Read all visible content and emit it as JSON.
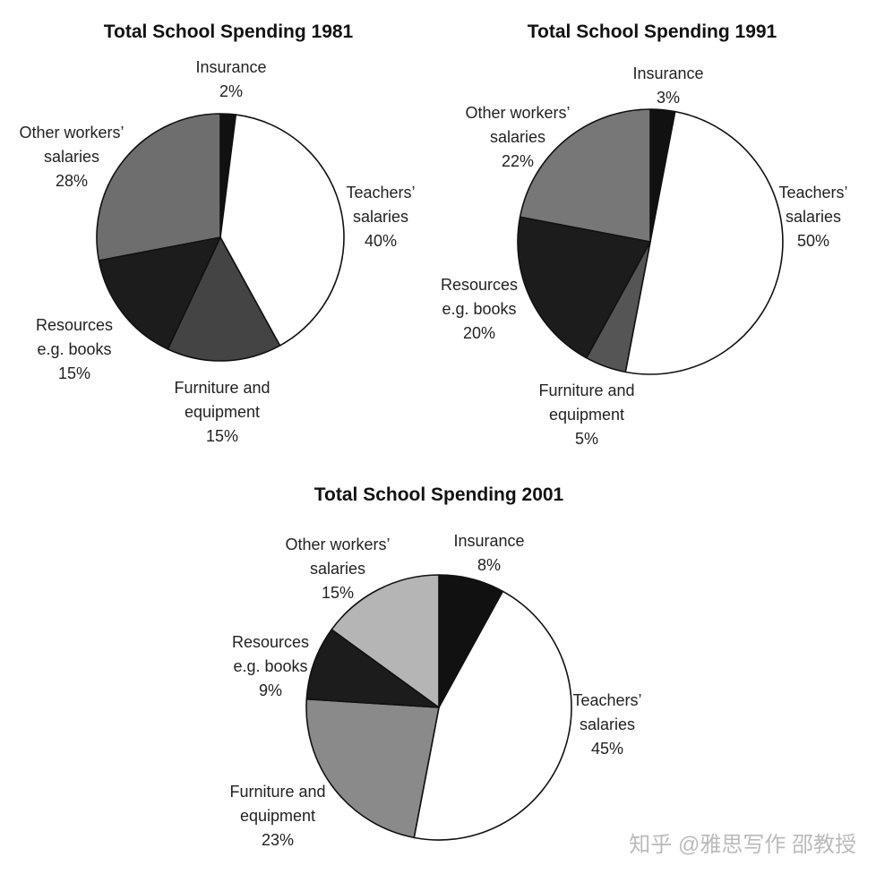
{
  "chart_data": [
    {
      "type": "pie",
      "title": "Total School Spending 1981",
      "categories": [
        "Insurance",
        "Teachers’ salaries",
        "Furniture and equipment",
        "Resources e.g. books",
        "Other workers’ salaries"
      ],
      "values": [
        2,
        40,
        15,
        15,
        28
      ],
      "value_labels": [
        "2%",
        "40%",
        "15%",
        "15%",
        "28%"
      ],
      "colors": [
        "#111111",
        "#ffffff",
        "#444444",
        "#1c1c1c",
        "#6e6e6e"
      ]
    },
    {
      "type": "pie",
      "title": "Total School Spending 1991",
      "categories": [
        "Insurance",
        "Teachers’ salaries",
        "Furniture and equipment",
        "Resources e.g. books",
        "Other workers’ salaries"
      ],
      "values": [
        3,
        50,
        5,
        20,
        22
      ],
      "value_labels": [
        "3%",
        "50%",
        "5%",
        "20%",
        "22%"
      ],
      "colors": [
        "#111111",
        "#ffffff",
        "#555555",
        "#1c1c1c",
        "#777777"
      ]
    },
    {
      "type": "pie",
      "title": "Total School Spending 2001",
      "categories": [
        "Insurance",
        "Teachers’ salaries",
        "Furniture and equipment",
        "Resources e.g. books",
        "Other workers’ salaries"
      ],
      "values": [
        8,
        45,
        23,
        9,
        15
      ],
      "value_labels": [
        "8%",
        "45%",
        "23%",
        "9%",
        "15%"
      ],
      "colors": [
        "#111111",
        "#ffffff",
        "#8a8a8a",
        "#1c1c1c",
        "#b5b5b5"
      ]
    }
  ],
  "watermark": "知乎 @雅思写作 邵教授"
}
